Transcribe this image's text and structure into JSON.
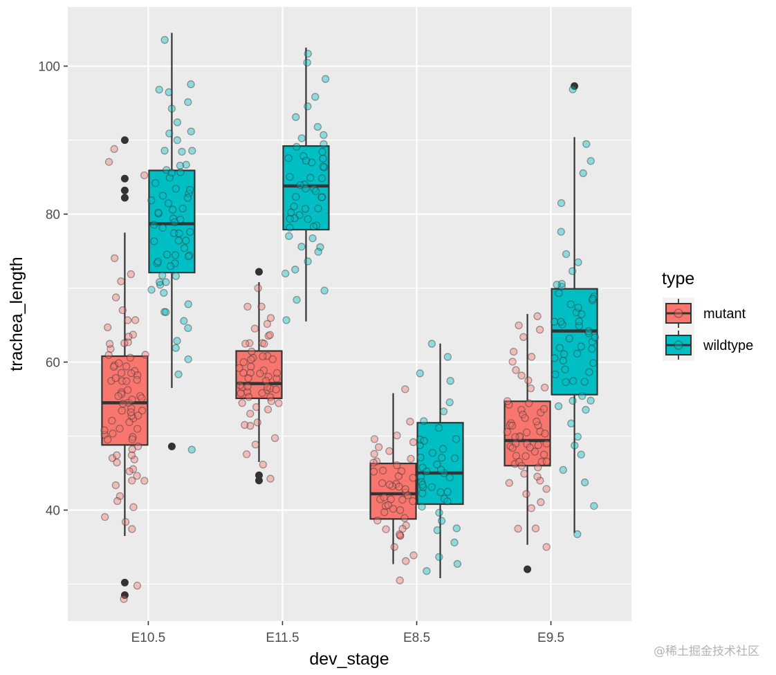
{
  "chart_data": {
    "type": "boxplot",
    "xlabel": "dev_stage",
    "ylabel": "trachea_length",
    "categories": [
      "E10.5",
      "E11.5",
      "E8.5",
      "E9.5"
    ],
    "ylim": [
      25,
      108
    ],
    "yticks": [
      40,
      60,
      80,
      100
    ],
    "grid": true,
    "legend": {
      "title": "type",
      "placement": "right",
      "entries": [
        "mutant",
        "wildtype"
      ]
    },
    "colors": {
      "mutant": "#F8766D",
      "wildtype": "#00BFC4",
      "panel": "#EBEBEB",
      "outline": "#333333"
    },
    "series": [
      {
        "name": "mutant",
        "boxes": [
          {
            "category": "E10.5",
            "whisker_low": 36.5,
            "q1": 48.8,
            "median": 54.5,
            "q3": 60.8,
            "whisker_high": 77.5,
            "outliers": [
              90.0,
              84.8,
              83.2,
              82.2,
              30.2,
              28.5
            ]
          },
          {
            "category": "E11.5",
            "whisker_low": 46.5,
            "q1": 55.1,
            "median": 57.1,
            "q3": 61.5,
            "whisker_high": 70.8,
            "outliers": [
              72.2,
              44.7,
              44.0
            ]
          },
          {
            "category": "E8.5",
            "whisker_low": 32.7,
            "q1": 38.8,
            "median": 42.2,
            "q3": 46.3,
            "whisker_high": 55.8,
            "outliers": []
          },
          {
            "category": "E9.5",
            "whisker_low": 35.3,
            "q1": 46.0,
            "median": 49.4,
            "q3": 54.7,
            "whisker_high": 66.5,
            "outliers": [
              32.0
            ]
          }
        ],
        "jitter": [
          [
            54,
            60,
            48,
            57,
            52,
            59,
            45,
            63,
            50,
            55,
            61,
            47,
            58,
            53,
            56,
            49,
            62,
            51,
            44,
            66,
            57,
            53,
            59,
            46,
            55,
            50,
            64,
            42,
            58,
            54,
            60,
            48,
            69,
            56,
            51,
            57,
            45,
            39,
            67,
            53,
            62,
            47,
            55,
            50,
            72,
            58,
            43,
            61,
            52,
            37,
            56,
            49,
            65,
            54,
            46,
            59,
            71,
            51,
            40,
            57,
            63,
            48,
            74,
            53,
            44,
            58,
            50,
            66,
            55,
            41,
            60,
            89,
            87,
            85,
            38,
            30,
            28,
            62,
            56,
            52
          ],
          [
            57,
            59,
            55,
            61,
            56,
            58,
            54,
            60,
            57,
            62,
            55,
            59,
            53,
            58,
            56,
            63,
            57,
            60,
            52,
            65,
            56,
            54,
            61,
            58,
            59,
            50,
            57,
            64,
            55,
            49,
            62,
            58,
            53,
            66,
            57,
            60,
            46,
            68,
            56,
            59,
            51,
            63,
            58,
            48,
            67,
            55,
            61,
            44,
            57,
            60,
            64,
            52,
            58,
            70,
            56,
            62
          ],
          [
            42,
            45,
            40,
            44,
            38,
            43,
            41,
            46,
            39,
            47,
            42,
            44,
            36,
            48,
            41,
            43,
            35,
            45,
            40,
            50,
            42,
            38,
            46,
            33,
            44,
            41,
            49,
            37,
            43,
            40,
            52,
            45,
            39,
            34,
            42,
            47,
            44,
            56,
            41,
            38,
            46,
            43,
            37,
            49,
            50,
            31,
            42
          ],
          [
            49,
            52,
            47,
            50,
            54,
            48,
            51,
            46,
            53,
            49,
            47,
            55,
            50,
            45,
            52,
            48,
            57,
            51,
            44,
            50,
            53,
            47,
            58,
            49,
            42,
            55,
            48,
            51,
            46,
            60,
            50,
            44,
            63,
            49,
            53,
            41,
            56,
            47,
            40,
            65,
            51,
            38,
            48,
            62,
            46,
            54,
            43,
            59,
            50,
            52,
            66,
            37,
            49,
            45,
            61,
            53,
            35,
            64,
            47,
            57
          ]
        ]
      },
      {
        "name": "wildtype",
        "boxes": [
          {
            "category": "E10.5",
            "whisker_low": 56.5,
            "q1": 72.1,
            "median": 78.7,
            "q3": 85.9,
            "whisker_high": 104.5,
            "outliers": [
              48.6
            ]
          },
          {
            "category": "E11.5",
            "whisker_low": 65.5,
            "q1": 77.9,
            "median": 83.8,
            "q3": 89.2,
            "whisker_high": 102.5,
            "outliers": []
          },
          {
            "category": "E8.5",
            "whisker_low": 30.8,
            "q1": 40.8,
            "median": 45.0,
            "q3": 51.8,
            "whisker_high": 62.5,
            "outliers": []
          },
          {
            "category": "E9.5",
            "whisker_low": 36.9,
            "q1": 55.6,
            "median": 64.2,
            "q3": 69.9,
            "whisker_high": 90.4,
            "outliers": [
              97.3
            ]
          }
        ],
        "jitter": [
          [
            78,
            82,
            75,
            86,
            73,
            80,
            77,
            84,
            71,
            79,
            88,
            74,
            81,
            76,
            85,
            69,
            83,
            72,
            90,
            78,
            67,
            87,
            80,
            75,
            92,
            73,
            84,
            66,
            79,
            95,
            70,
            82,
            76,
            89,
            64,
            81,
            74,
            97,
            68,
            86,
            78,
            62,
            91,
            72,
            83,
            104,
            77,
            94,
            70,
            85,
            60,
            80,
            73,
            88,
            75,
            98,
            58,
            82,
            67,
            91,
            79,
            71,
            86,
            63,
            96,
            74,
            81,
            48
          ],
          [
            84,
            80,
            87,
            82,
            79,
            89,
            85,
            77,
            88,
            81,
            90,
            83,
            78,
            86,
            92,
            80,
            84,
            76,
            91,
            82,
            79,
            94,
            85,
            73,
            88,
            81,
            96,
            77,
            83,
            70,
            87,
            80,
            98,
            75,
            86,
            82,
            100,
            78,
            89,
            72,
            84,
            102,
            79,
            68,
            85,
            76,
            90,
            66,
            81,
            87,
            74,
            93
          ],
          [
            45,
            48,
            43,
            50,
            41,
            47,
            52,
            44,
            46,
            40,
            49,
            43,
            53,
            45,
            38,
            51,
            47,
            42,
            55,
            44,
            36,
            48,
            41,
            57,
            46,
            39,
            50,
            34,
            45,
            59,
            43,
            37,
            47,
            61,
            42,
            32,
            49,
            33,
            44,
            62,
            40,
            46
          ],
          [
            64,
            60,
            67,
            62,
            58,
            66,
            61,
            69,
            57,
            65,
            63,
            70,
            59,
            66,
            55,
            68,
            62,
            71,
            53,
            64,
            60,
            72,
            56,
            67,
            50,
            63,
            75,
            58,
            69,
            47,
            65,
            61,
            78,
            54,
            68,
            44,
            62,
            82,
            59,
            70,
            45,
            66,
            87,
            52,
            63,
            40,
            73,
            57,
            90,
            49,
            66,
            37,
            69,
            61,
            85,
            55,
            97
          ]
        ]
      }
    ]
  },
  "watermark": "@稀土掘金技术社区"
}
